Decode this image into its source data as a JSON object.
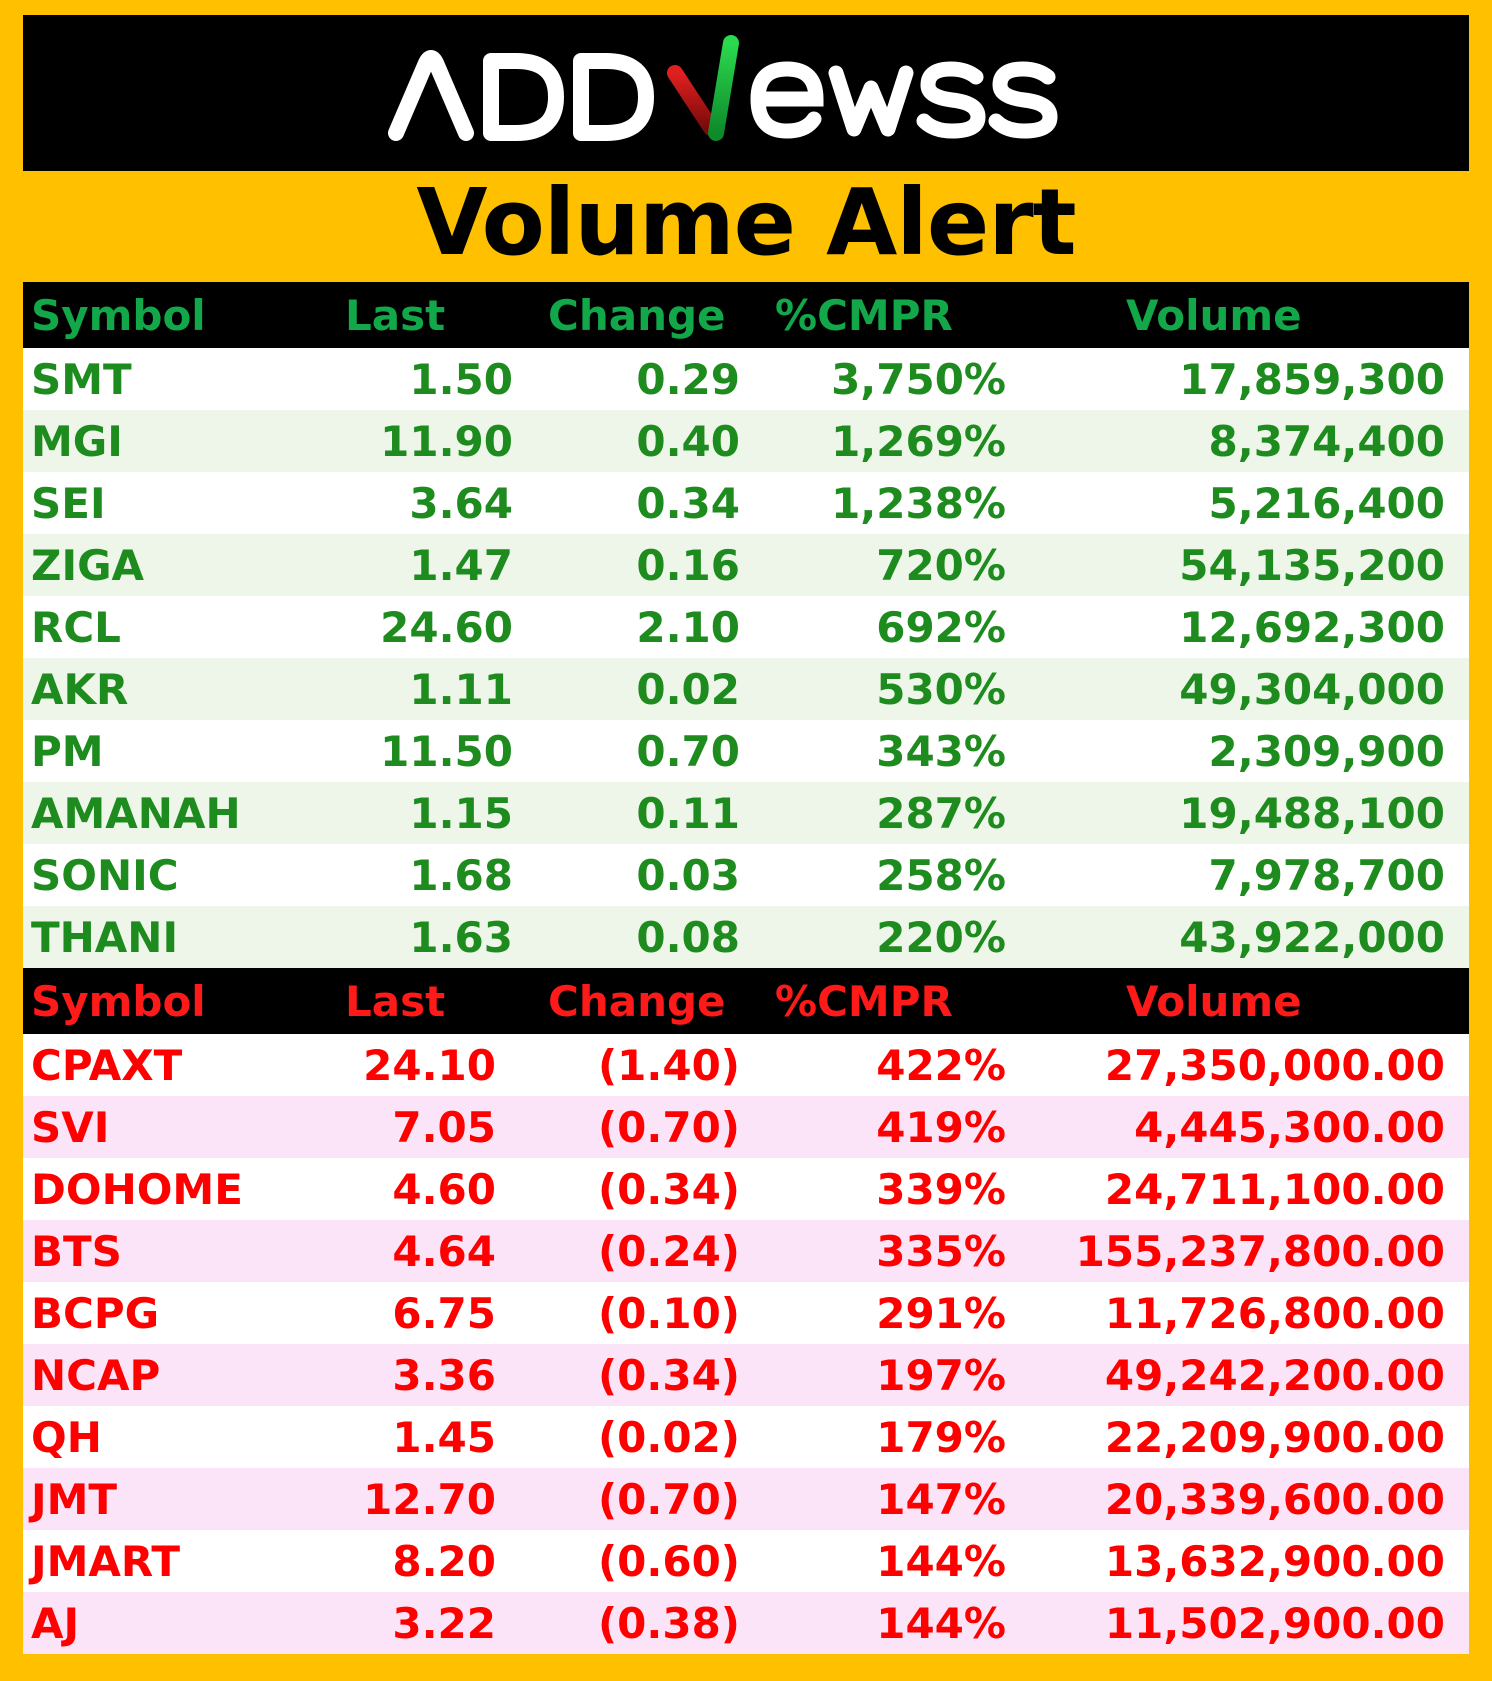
{
  "colors": {
    "background": "#FFC000",
    "header_bg": "#000000",
    "gainer_text": "#1E8B1E",
    "gainer_header": "#12A84A",
    "loser_text": "#FF0000",
    "loser_stripe": "#FCE4F8",
    "gainer_stripe": "#EEF6E9"
  },
  "logo": {
    "text": "ADDNEWSS",
    "icon": "addnewss-logo"
  },
  "title": "Volume Alert",
  "gainers": {
    "headers": [
      "Symbol",
      "Last",
      "Change",
      "%CMPR",
      "Volume"
    ],
    "rows": [
      [
        "SMT",
        "1.50",
        "0.29",
        "3,750%",
        "17,859,300"
      ],
      [
        "MGI",
        "11.90",
        "0.40",
        "1,269%",
        "8,374,400"
      ],
      [
        "SEI",
        "3.64",
        "0.34",
        "1,238%",
        "5,216,400"
      ],
      [
        "ZIGA",
        "1.47",
        "0.16",
        "720%",
        "54,135,200"
      ],
      [
        "RCL",
        "24.60",
        "2.10",
        "692%",
        "12,692,300"
      ],
      [
        "AKR",
        "1.11",
        "0.02",
        "530%",
        "49,304,000"
      ],
      [
        "PM",
        "11.50",
        "0.70",
        "343%",
        "2,309,900"
      ],
      [
        "AMANAH",
        "1.15",
        "0.11",
        "287%",
        "19,488,100"
      ],
      [
        "SONIC",
        "1.68",
        "0.03",
        "258%",
        "7,978,700"
      ],
      [
        "THANI",
        "1.63",
        "0.08",
        "220%",
        "43,922,000"
      ]
    ]
  },
  "losers": {
    "headers": [
      "Symbol",
      "Last",
      "Change",
      "%CMPR",
      "Volume"
    ],
    "rows": [
      [
        "CPAXT",
        "24.10",
        "(1.40)",
        "422%",
        "27,350,000.00"
      ],
      [
        "SVI",
        "7.05",
        "(0.70)",
        "419%",
        "4,445,300.00"
      ],
      [
        "DOHOME",
        "4.60",
        "(0.34)",
        "339%",
        "24,711,100.00"
      ],
      [
        "BTS",
        "4.64",
        "(0.24)",
        "335%",
        "155,237,800.00"
      ],
      [
        "BCPG",
        "6.75",
        "(0.10)",
        "291%",
        "11,726,800.00"
      ],
      [
        "NCAP",
        "3.36",
        "(0.34)",
        "197%",
        "49,242,200.00"
      ],
      [
        "QH",
        "1.45",
        "(0.02)",
        "179%",
        "22,209,900.00"
      ],
      [
        "JMT",
        "12.70",
        "(0.70)",
        "147%",
        "20,339,600.00"
      ],
      [
        "JMART",
        "8.20",
        "(0.60)",
        "144%",
        "13,632,900.00"
      ],
      [
        "AJ",
        "3.22",
        "(0.38)",
        "144%",
        "11,502,900.00"
      ]
    ]
  }
}
